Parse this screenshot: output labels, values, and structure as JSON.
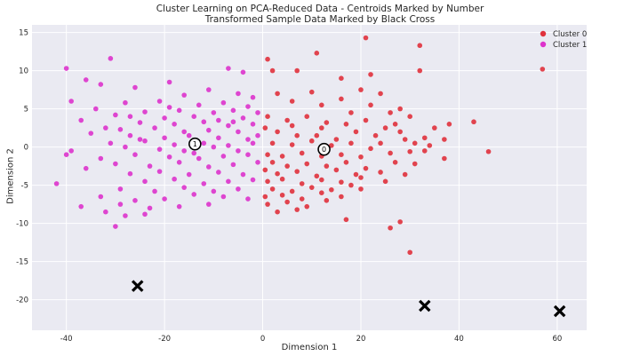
{
  "chart_data": {
    "type": "scatter",
    "title": "Cluster Learning on PCA-Reduced Data - Centroids Marked by Number",
    "subtitle": "Transformed Sample Data Marked by Black Cross",
    "xlabel": "Dimension 1",
    "ylabel": "Dimension 2",
    "xlim": [
      -47,
      66
    ],
    "ylim": [
      -24,
      16
    ],
    "xticks": [
      -40,
      -20,
      0,
      20,
      40,
      60
    ],
    "yticks": [
      -20,
      -15,
      -10,
      -5,
      0,
      5,
      10,
      15
    ],
    "grid": true,
    "legend": "top-right",
    "series": [
      {
        "name": "Cluster 0",
        "color": "#e0313c",
        "points": [
          [
            21,
            14.3
          ],
          [
            32,
            13.3
          ],
          [
            11,
            12.3
          ],
          [
            57,
            10.2
          ],
          [
            32,
            10
          ],
          [
            1,
            11.5
          ],
          [
            2,
            10
          ],
          [
            7,
            10
          ],
          [
            22,
            9.5
          ],
          [
            16,
            9
          ],
          [
            20,
            7.5
          ],
          [
            24,
            7
          ],
          [
            3,
            7
          ],
          [
            10,
            7.2
          ],
          [
            6,
            6
          ],
          [
            12,
            5.5
          ],
          [
            16,
            6.3
          ],
          [
            22,
            5.5
          ],
          [
            28,
            5
          ],
          [
            18,
            4.5
          ],
          [
            26,
            4.5
          ],
          [
            30,
            4
          ],
          [
            1,
            4
          ],
          [
            5,
            3.5
          ],
          [
            9,
            4
          ],
          [
            13,
            3.2
          ],
          [
            17,
            3
          ],
          [
            21,
            3.5
          ],
          [
            25,
            2.5
          ],
          [
            27,
            3
          ],
          [
            43,
            3.3
          ],
          [
            38,
            3
          ],
          [
            35,
            2.5
          ],
          [
            0.5,
            2.5
          ],
          [
            3,
            2
          ],
          [
            7,
            1.5
          ],
          [
            11,
            1.5
          ],
          [
            15,
            1
          ],
          [
            19,
            2
          ],
          [
            23,
            1.5
          ],
          [
            29,
            1
          ],
          [
            33,
            1.2
          ],
          [
            37,
            1
          ],
          [
            2,
            0.5
          ],
          [
            6,
            0.3
          ],
          [
            10,
            0.8
          ],
          [
            14,
            0.2
          ],
          [
            18,
            0.5
          ],
          [
            22,
            -0.2
          ],
          [
            31,
            0.5
          ],
          [
            34,
            0.2
          ],
          [
            1,
            -1
          ],
          [
            4,
            -1.2
          ],
          [
            8,
            -0.8
          ],
          [
            12,
            -1.2
          ],
          [
            16,
            -1
          ],
          [
            20,
            -1.3
          ],
          [
            26,
            -0.8
          ],
          [
            30,
            -0.6
          ],
          [
            46,
            -0.6
          ],
          [
            2,
            -2
          ],
          [
            5,
            -2.5
          ],
          [
            9,
            -2.2
          ],
          [
            13,
            -2.5
          ],
          [
            17,
            -2
          ],
          [
            21,
            -2.8
          ],
          [
            27,
            -2
          ],
          [
            31,
            -2.2
          ],
          [
            37,
            -1.5
          ],
          [
            0.5,
            -3
          ],
          [
            3,
            -3.5
          ],
          [
            7,
            -3.2
          ],
          [
            11,
            -3.8
          ],
          [
            15,
            -3
          ],
          [
            19,
            -3.6
          ],
          [
            24,
            -3.3
          ],
          [
            29,
            -3.6
          ],
          [
            1,
            -4.5
          ],
          [
            4,
            -4.2
          ],
          [
            8,
            -4.8
          ],
          [
            12,
            -4.3
          ],
          [
            16,
            -4.6
          ],
          [
            20,
            -4
          ],
          [
            25,
            -4.5
          ],
          [
            2,
            -5.5
          ],
          [
            6,
            -5.8
          ],
          [
            10,
            -5.3
          ],
          [
            14,
            -5.6
          ],
          [
            18,
            -5
          ],
          [
            0.5,
            -6.5
          ],
          [
            4,
            -6.3
          ],
          [
            8,
            -6.8
          ],
          [
            12,
            -6
          ],
          [
            16,
            -6.5
          ],
          [
            1,
            -7.5
          ],
          [
            5,
            -7.2
          ],
          [
            9,
            -7.8
          ],
          [
            13,
            -7
          ],
          [
            3,
            -8.5
          ],
          [
            7,
            -8.2
          ],
          [
            17,
            -9.5
          ],
          [
            28,
            -9.8
          ],
          [
            26,
            -10.6
          ],
          [
            30,
            -13.8
          ],
          [
            33,
            -0.5
          ],
          [
            24,
            0.5
          ],
          [
            6,
            2.8
          ],
          [
            12,
            2.5
          ],
          [
            28,
            2
          ],
          [
            20,
            -5.5
          ]
        ]
      },
      {
        "name": "Cluster 1",
        "color": "#dd33cc",
        "points": [
          [
            -31,
            11.6
          ],
          [
            -40,
            10.3
          ],
          [
            -7,
            10.3
          ],
          [
            -4,
            9.8
          ],
          [
            -36,
            8.8
          ],
          [
            -19,
            8.5
          ],
          [
            -33,
            8.2
          ],
          [
            -26,
            7.8
          ],
          [
            -11,
            7.5
          ],
          [
            -5,
            7
          ],
          [
            -16,
            6.8
          ],
          [
            -2,
            6.5
          ],
          [
            -39,
            6
          ],
          [
            -28,
            5.8
          ],
          [
            -21,
            6
          ],
          [
            -13,
            5.5
          ],
          [
            -8,
            5.8
          ],
          [
            -3,
            5.3
          ],
          [
            -34,
            5
          ],
          [
            -24,
            4.6
          ],
          [
            -17,
            4.8
          ],
          [
            -10,
            4.5
          ],
          [
            -6,
            4.8
          ],
          [
            -1,
            4.5
          ],
          [
            -30,
            4.2
          ],
          [
            -27,
            4
          ],
          [
            -20,
            3.8
          ],
          [
            -14,
            4
          ],
          [
            -9,
            3.5
          ],
          [
            -4,
            3.8
          ],
          [
            -37,
            3.5
          ],
          [
            -25,
            3.2
          ],
          [
            -18,
            3
          ],
          [
            -12,
            3.3
          ],
          [
            -7,
            2.8
          ],
          [
            -2,
            3
          ],
          [
            -32,
            2.5
          ],
          [
            -29,
            2.3
          ],
          [
            -22,
            2.5
          ],
          [
            -16,
            2
          ],
          [
            -11,
            2.2
          ],
          [
            -5,
            2
          ],
          [
            -1,
            1.5
          ],
          [
            -35,
            1.8
          ],
          [
            -27,
            1.5
          ],
          [
            -20,
            1.2
          ],
          [
            -15,
            1.5
          ],
          [
            -9,
            1.2
          ],
          [
            -3,
            1
          ],
          [
            -31,
            0.5
          ],
          [
            -24,
            0.8
          ],
          [
            -18,
            0.3
          ],
          [
            -12,
            0.5
          ],
          [
            -7,
            0.2
          ],
          [
            -2,
            0.5
          ],
          [
            -28,
            0
          ],
          [
            -21,
            -0.3
          ],
          [
            -16,
            -0.5
          ],
          [
            -10,
            0
          ],
          [
            -5,
            -0.5
          ],
          [
            -40,
            -1
          ],
          [
            -33,
            -1.5
          ],
          [
            -26,
            -1
          ],
          [
            -19,
            -1.3
          ],
          [
            -13,
            -1.5
          ],
          [
            -8,
            -1.2
          ],
          [
            -3,
            -1
          ],
          [
            -30,
            -2.2
          ],
          [
            -23,
            -2.5
          ],
          [
            -17,
            -2
          ],
          [
            -11,
            -2.6
          ],
          [
            -6,
            -2.3
          ],
          [
            -1,
            -2
          ],
          [
            -36,
            -2.8
          ],
          [
            -27,
            -3.5
          ],
          [
            -21,
            -3.2
          ],
          [
            -15,
            -3.6
          ],
          [
            -9,
            -3.3
          ],
          [
            -4,
            -3.6
          ],
          [
            -24,
            -4.5
          ],
          [
            -18,
            -4.2
          ],
          [
            -12,
            -4.8
          ],
          [
            -7,
            -4.5
          ],
          [
            -2,
            -4.3
          ],
          [
            -42,
            -4.8
          ],
          [
            -29,
            -5.5
          ],
          [
            -22,
            -5.8
          ],
          [
            -16,
            -5.3
          ],
          [
            -10,
            -5.8
          ],
          [
            -5,
            -5.5
          ],
          [
            -33,
            -6.5
          ],
          [
            -26,
            -7
          ],
          [
            -20,
            -6.8
          ],
          [
            -14,
            -6.2
          ],
          [
            -8,
            -6.5
          ],
          [
            -29,
            -7.5
          ],
          [
            -23,
            -8
          ],
          [
            -17,
            -7.8
          ],
          [
            -11,
            -7.5
          ],
          [
            -32,
            -8.5
          ],
          [
            -24,
            -8.8
          ],
          [
            -37,
            -7.8
          ],
          [
            -28,
            -9
          ],
          [
            -30,
            -10.4
          ],
          [
            -39,
            -0.5
          ],
          [
            -14,
            -0.8
          ],
          [
            -6,
            3.3
          ],
          [
            -19,
            5.2
          ],
          [
            -3,
            -6.8
          ],
          [
            -25,
            1
          ]
        ]
      }
    ],
    "centroids": [
      {
        "label": "0",
        "x": 12.5,
        "y": -0.3
      },
      {
        "label": "1",
        "x": -13.8,
        "y": 0.4
      }
    ],
    "samples": [
      {
        "x": -25.5,
        "y": -18.2
      },
      {
        "x": 33,
        "y": -20.8
      },
      {
        "x": 60.5,
        "y": -21.5
      }
    ]
  }
}
